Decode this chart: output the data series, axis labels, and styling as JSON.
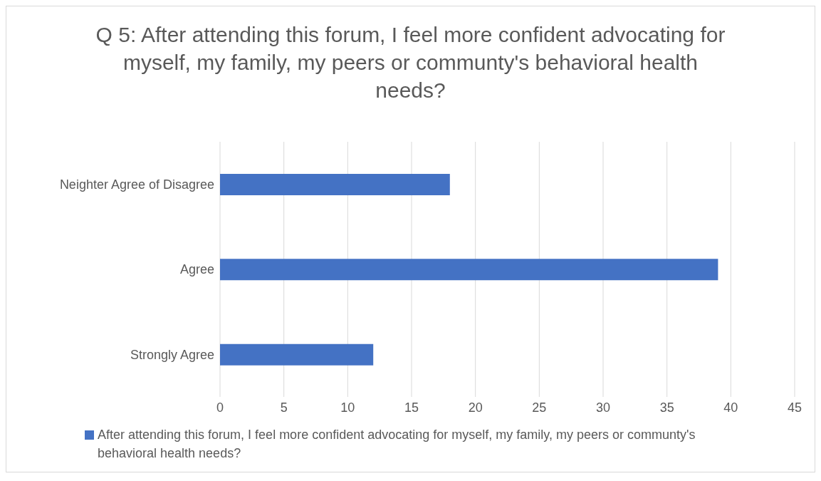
{
  "chart_data": {
    "type": "bar",
    "orientation": "horizontal",
    "title": "Q 5: After attending this forum, I feel more confident advocating for myself, my family, my peers or communty's behavioral health needs?",
    "categories": [
      "Neighter Agree of Disagree",
      "Agree",
      "Strongly Agree"
    ],
    "series": [
      {
        "name": "After attending this forum, I feel more confident advocating for myself, my family, my peers or communty's behavioral health needs?",
        "color": "#4472c4",
        "values": [
          18,
          39,
          12
        ]
      }
    ],
    "xlim": [
      0,
      45
    ],
    "xticks": [
      0,
      5,
      10,
      15,
      20,
      25,
      30,
      35,
      40,
      45
    ],
    "grid": "x",
    "legend": "bottom"
  }
}
